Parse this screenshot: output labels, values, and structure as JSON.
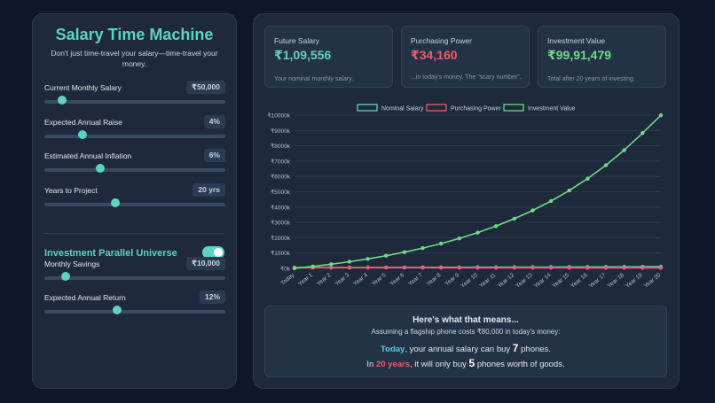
{
  "app": {
    "title": "Salary Time Machine",
    "subtitle": "Don't just time-travel your salary—time-travel your money."
  },
  "controls": [
    {
      "label": "Current Monthly Salary",
      "value": "₹50,000",
      "slider_fraction": 0.1
    },
    {
      "label": "Expected Annual Raise",
      "value": "4%",
      "slider_fraction": 0.21
    },
    {
      "label": "Estimated Annual Inflation",
      "value": "6%",
      "slider_fraction": 0.31
    },
    {
      "label": "Years to Project",
      "value": "20 yrs",
      "slider_fraction": 0.39
    }
  ],
  "investment": {
    "title": "Investment Parallel Universe",
    "toggle_on": true,
    "controls": [
      {
        "label": "Monthly Savings",
        "value": "₹10,000",
        "slider_fraction": 0.12
      },
      {
        "label": "Expected Annual Return",
        "value": "12%",
        "slider_fraction": 0.4
      }
    ]
  },
  "cards": [
    {
      "label": "Future Salary",
      "value": "₹1,09,556",
      "note": "Your nominal monthly salary.",
      "color": "#5ed3c3"
    },
    {
      "label": "Purchasing Power",
      "value": "₹34,160",
      "note": "...in today's money. The \"scary number\".",
      "color": "#f05a6a"
    },
    {
      "label": "Investment Value",
      "value": "₹99,91,479",
      "note": "Total after 20 years of investing.",
      "color": "#6fdc84"
    }
  ],
  "chart_data": {
    "type": "line",
    "x": [
      "Today",
      "Year 1",
      "Year 2",
      "Year 3",
      "Year 4",
      "Year 5",
      "Year 6",
      "Year 7",
      "Year 8",
      "Year 9",
      "Year 10",
      "Year 11",
      "Year 12",
      "Year 13",
      "Year 14",
      "Year 15",
      "Year 16",
      "Year 17",
      "Year 18",
      "Year 19",
      "Year 20"
    ],
    "y_ticks": [
      "₹0k",
      "₹1000k",
      "₹2000k",
      "₹3000k",
      "₹4000k",
      "₹5000k",
      "₹6000k",
      "₹7000k",
      "₹8000k",
      "₹9000k",
      "₹10000k"
    ],
    "ylim": [
      0,
      10000
    ],
    "y_unit": "₹ thousands",
    "grid": true,
    "legend_position": "top",
    "series": [
      {
        "name": "Nominal Salary",
        "color": "#5ed3c3",
        "values": [
          50,
          52,
          54,
          56,
          58,
          61,
          63,
          66,
          68,
          71,
          74,
          77,
          80,
          83,
          87,
          90,
          94,
          97,
          101,
          105,
          110
        ]
      },
      {
        "name": "Purchasing Power",
        "color": "#f05a6a",
        "values": [
          50,
          49,
          48,
          47,
          46,
          45,
          45,
          44,
          43,
          42,
          41,
          40,
          40,
          39,
          38,
          38,
          37,
          36,
          35,
          35,
          34
        ]
      },
      {
        "name": "Investment Value",
        "color": "#6fdc84",
        "values": [
          0,
          128,
          272,
          435,
          618,
          825,
          1058,
          1322,
          1619,
          1954,
          2333,
          2759,
          3240,
          3781,
          4393,
          5082,
          5859,
          6735,
          7722,
          8835,
          9991
        ]
      }
    ]
  },
  "explanation": {
    "title": "Here's what that means...",
    "subtitle": "Assuming a flagship phone costs ₹80,000 in today's money:",
    "line1": {
      "highlight": "Today",
      "pre": ", your annual salary can buy ",
      "count": "7",
      "post": " phones."
    },
    "line2": {
      "pre": "In ",
      "highlight": "20 years",
      "mid": ", it will only buy ",
      "count": "5",
      "post": " phones worth of goods."
    }
  }
}
